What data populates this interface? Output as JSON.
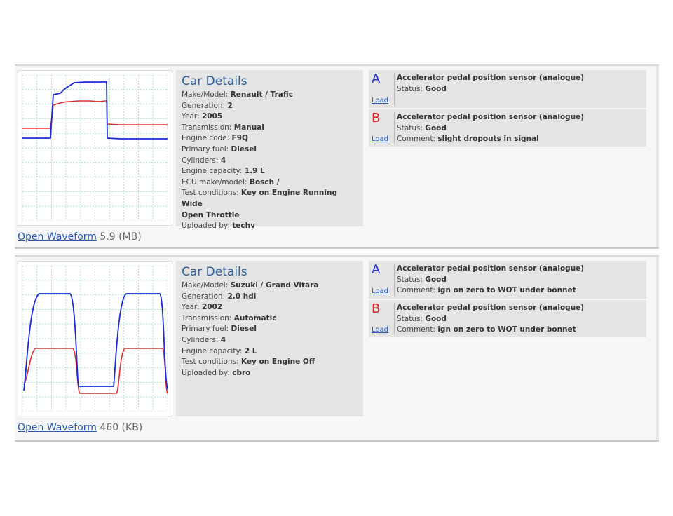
{
  "entries": [
    {
      "open_label": "Open Waveform",
      "size": "5.9 (MB)",
      "details_title": "Car Details",
      "details": [
        {
          "label": "Make/Model:",
          "value": "Renault / Trafic"
        },
        {
          "label": "Generation:",
          "value": "2"
        },
        {
          "label": "Year:",
          "value": "2005"
        },
        {
          "label": "Transmission:",
          "value": "Manual"
        },
        {
          "label": "Engine code:",
          "value": "F9Q"
        },
        {
          "label": "Primary fuel:",
          "value": "Diesel"
        },
        {
          "label": "Cylinders:",
          "value": "4"
        },
        {
          "label": "Engine capacity:",
          "value": "1.9 L"
        },
        {
          "label": "ECU make/model:",
          "value": "Bosch /"
        },
        {
          "label": "Test conditions:",
          "value": "Key on Engine Running Wide"
        },
        {
          "label": "",
          "value": "Open Throttle"
        },
        {
          "label": "Uploaded by:",
          "value": "techv"
        }
      ],
      "channels": [
        {
          "letter": "A",
          "load": "Load",
          "title": "Accelerator pedal position sensor (analogue)",
          "status_label": "Status:",
          "status": "Good",
          "comment_label": "",
          "comment": ""
        },
        {
          "letter": "B",
          "load": "Load",
          "title": "Accelerator pedal position sensor (analogue)",
          "status_label": "Status:",
          "status": "Good",
          "comment_label": "Comment:",
          "comment": "slight dropouts in signal"
        }
      ]
    },
    {
      "open_label": "Open Waveform",
      "size": "460 (KB)",
      "details_title": "Car Details",
      "details": [
        {
          "label": "Make/Model:",
          "value": "Suzuki / Grand Vitara"
        },
        {
          "label": "Generation:",
          "value": "2.0 hdi"
        },
        {
          "label": "Year:",
          "value": "2002"
        },
        {
          "label": "Transmission:",
          "value": "Automatic"
        },
        {
          "label": "Primary fuel:",
          "value": "Diesel"
        },
        {
          "label": "Cylinders:",
          "value": "4"
        },
        {
          "label": "Engine capacity:",
          "value": "2 L"
        },
        {
          "label": "Test conditions:",
          "value": "Key on Engine Off"
        },
        {
          "label": "Uploaded by:",
          "value": "cbro"
        }
      ],
      "channels": [
        {
          "letter": "A",
          "load": "Load",
          "title": "Accelerator pedal position sensor (analogue)",
          "status_label": "Status:",
          "status": "Good",
          "comment_label": "Comment:",
          "comment": "ign on zero to WOT under bonnet"
        },
        {
          "letter": "B",
          "load": "Load",
          "title": "Accelerator pedal position sensor (analogue)",
          "status_label": "Status:",
          "status": "Good",
          "comment_label": "Comment:",
          "comment": "ign on zero to WOT under bonnet"
        }
      ]
    }
  ],
  "colors": {
    "channel_a": "#1a2bd8",
    "channel_b": "#e03030",
    "grid": "#9fd4d4"
  }
}
